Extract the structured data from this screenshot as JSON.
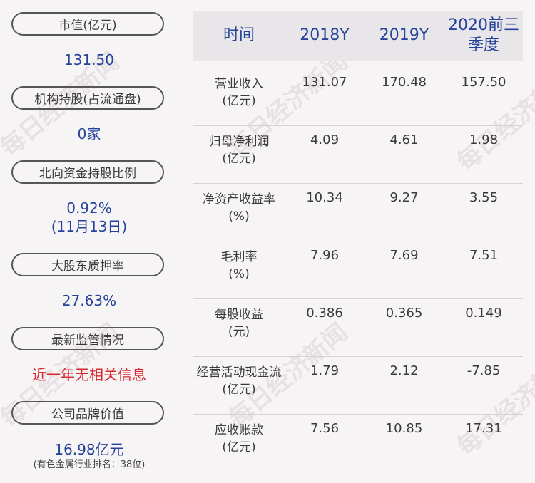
{
  "left_panel": {
    "items": [
      {
        "label": "市值(亿元)",
        "value": "131.50"
      },
      {
        "label": "机构持股(占流通盘)",
        "value": "0家"
      },
      {
        "label": "北向资金持股比例",
        "value": "0.92%",
        "value2": "(11月13日)"
      },
      {
        "label": "大股东质押率",
        "value": "27.63%"
      },
      {
        "label": "最新监管情况",
        "value": "近一年无相关信息"
      },
      {
        "label": "公司品牌价值",
        "value": "16.98亿元",
        "note": "(有色金属行业排名：38位)"
      }
    ]
  },
  "table": {
    "headers": [
      "时间",
      "2018Y",
      "2019Y",
      "2020前三季度"
    ],
    "rows": [
      {
        "name": "营业收入",
        "unit": "(亿元)",
        "v2018": "131.07",
        "v2019": "170.48",
        "v2020": "157.50"
      },
      {
        "name": "归母净利润",
        "unit": "(亿元)",
        "v2018": "4.09",
        "v2019": "4.61",
        "v2020": "1.98"
      },
      {
        "name": "净资产收益率",
        "unit": "(%)",
        "v2018": "10.34",
        "v2019": "9.27",
        "v2020": "3.55"
      },
      {
        "name": "毛利率",
        "unit": "(%)",
        "v2018": "7.96",
        "v2019": "7.69",
        "v2020": "7.51"
      },
      {
        "name": "每股收益",
        "unit": "(元)",
        "v2018": "0.386",
        "v2019": "0.365",
        "v2020": "0.149"
      },
      {
        "name": "经营活动现金流",
        "unit": "(亿元)",
        "v2018": "1.79",
        "v2019": "2.12",
        "v2020": "-7.85"
      },
      {
        "name": "应收账款",
        "unit": "(亿元)",
        "v2018": "7.56",
        "v2019": "10.85",
        "v2020": "17.31"
      }
    ]
  },
  "watermark": {
    "text": "每日经济新闻"
  },
  "colors": {
    "accent": "#24439a",
    "alert": "#d8262e",
    "background": "#f7f4f6",
    "header_bg": "#e8e6e9"
  }
}
